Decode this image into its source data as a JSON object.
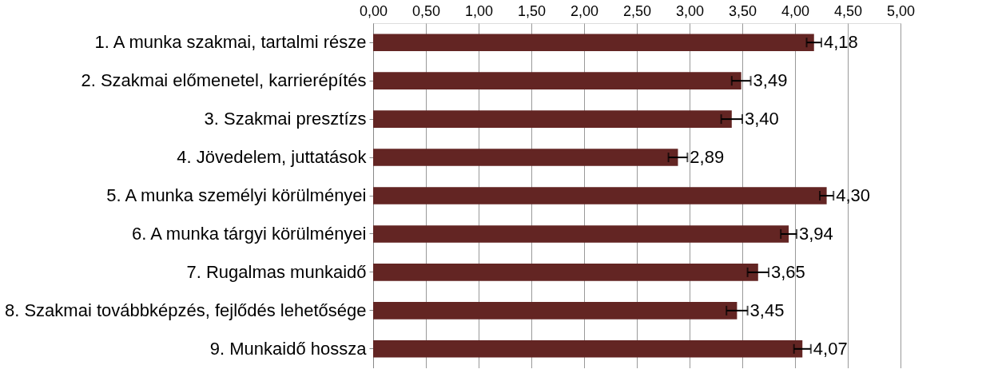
{
  "chart_data": {
    "type": "bar",
    "orientation": "horizontal",
    "categories": [
      "1. A munka szakmai, tartalmi része",
      "2. Szakmai előmenetel, karrierépítés",
      "3. Szakmai presztízs",
      "4. Jövedelem, juttatások",
      "5. A munka személyi körülményei",
      "6. A munka tárgyi körülményei",
      "7. Rugalmas munkaidő",
      "8. Szakmai továbbképzés, fejlődés lehetősége",
      "9. Munkaidő hossza"
    ],
    "values": [
      4.18,
      3.49,
      3.4,
      2.89,
      4.3,
      3.94,
      3.65,
      3.45,
      4.07
    ],
    "errors": [
      0.07,
      0.09,
      0.1,
      0.09,
      0.065,
      0.075,
      0.1,
      0.1,
      0.08
    ],
    "value_labels": [
      "4,18",
      "3,49",
      "3,40",
      "2,89",
      "4,30",
      "3,94",
      "3,65",
      "3,45",
      "4,07"
    ],
    "color": "#632523",
    "xlim": [
      0,
      5
    ],
    "xticks": [
      {
        "value": 0,
        "label": "0,00"
      },
      {
        "value": 0.5,
        "label": "0,50"
      },
      {
        "value": 1,
        "label": "1,00"
      },
      {
        "value": 1.5,
        "label": "1,50"
      },
      {
        "value": 2,
        "label": "2,00"
      },
      {
        "value": 2.5,
        "label": "2,50"
      },
      {
        "value": 3,
        "label": "3,00"
      },
      {
        "value": 3.5,
        "label": "3,50"
      },
      {
        "value": 4,
        "label": "4,00"
      },
      {
        "value": 4.5,
        "label": "4,50"
      },
      {
        "value": 5,
        "label": "5,00"
      }
    ],
    "grid": "x"
  }
}
